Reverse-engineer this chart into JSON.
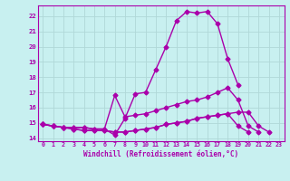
{
  "title": "",
  "xlabel": "Windchill (Refroidissement éolien,°C)",
  "ylabel": "",
  "bg_color": "#c8f0f0",
  "grid_color": "#b0d8d8",
  "line_color": "#aa00aa",
  "line_width": 1.0,
  "marker": "D",
  "marker_size": 2.5,
  "xlim": [
    -0.5,
    23.5
  ],
  "ylim": [
    13.8,
    22.7
  ],
  "yticks": [
    14,
    15,
    16,
    17,
    18,
    19,
    20,
    21,
    22
  ],
  "xticks": [
    0,
    1,
    2,
    3,
    4,
    5,
    6,
    7,
    8,
    9,
    10,
    11,
    12,
    13,
    14,
    15,
    16,
    17,
    18,
    19,
    20,
    21,
    22,
    23
  ],
  "lines": [
    [
      14.9,
      14.8,
      14.7,
      14.7,
      14.7,
      14.6,
      14.6,
      14.2,
      15.3,
      16.9,
      17.0,
      18.5,
      20.0,
      21.7,
      22.3,
      22.2,
      22.3,
      21.5,
      19.2,
      17.5,
      null,
      null,
      null,
      null
    ],
    [
      14.9,
      14.8,
      14.7,
      14.7,
      14.7,
      14.6,
      14.6,
      16.8,
      15.4,
      15.5,
      15.6,
      15.8,
      16.0,
      16.2,
      16.4,
      16.5,
      16.7,
      17.0,
      17.3,
      16.5,
      14.8,
      14.4,
      null,
      null
    ],
    [
      14.9,
      14.8,
      14.7,
      14.6,
      14.5,
      14.5,
      14.5,
      14.4,
      14.4,
      14.5,
      14.6,
      14.7,
      14.9,
      15.0,
      15.1,
      15.3,
      15.4,
      15.5,
      15.6,
      15.7,
      15.7,
      14.8,
      14.4,
      null
    ],
    [
      14.9,
      14.8,
      14.7,
      14.6,
      14.5,
      14.5,
      14.5,
      14.4,
      14.4,
      14.5,
      14.6,
      14.7,
      14.9,
      15.0,
      15.1,
      15.3,
      15.4,
      15.5,
      15.6,
      14.8,
      14.4,
      null,
      null,
      null
    ]
  ]
}
